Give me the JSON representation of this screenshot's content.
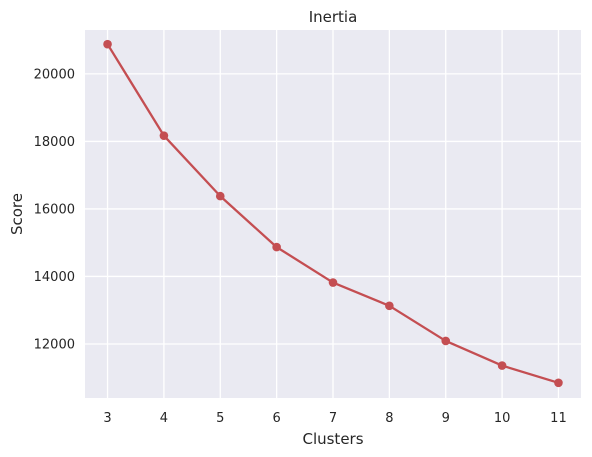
{
  "chart_data": {
    "type": "line",
    "title": "Inertia",
    "xlabel": "Clusters",
    "ylabel": "Score",
    "x": [
      3,
      4,
      5,
      6,
      7,
      8,
      9,
      10,
      11
    ],
    "series": [
      {
        "values": [
          20880,
          18170,
          16380,
          14870,
          13820,
          13130,
          12090,
          11360,
          10850
        ],
        "color": "#c44e52",
        "marker": "circle"
      }
    ],
    "xticks": [
      "3",
      "4",
      "5",
      "6",
      "7",
      "8",
      "9",
      "10",
      "11"
    ],
    "yticks": [
      "12000",
      "14000",
      "16000",
      "18000",
      "20000"
    ],
    "xlim": [
      2.6,
      11.4
    ],
    "ylim": [
      10400,
      21300
    ],
    "grid": true,
    "background": "#eaeaf2"
  }
}
